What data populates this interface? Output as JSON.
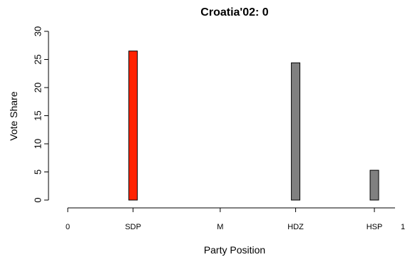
{
  "chart_data": {
    "type": "bar",
    "title": "Croatia'02: 0",
    "xlabel": "Party Position",
    "ylabel": "Vote Share",
    "ylim": [
      0,
      30
    ],
    "yticks": [
      0,
      5,
      10,
      15,
      20,
      25,
      30
    ],
    "xlim": [
      0,
      1
    ],
    "xticks": [
      {
        "pos": 0,
        "label": "0"
      },
      {
        "pos": 0.195,
        "label": "SDP"
      },
      {
        "pos": 0.455,
        "label": "M"
      },
      {
        "pos": 0.68,
        "label": "HDZ"
      },
      {
        "pos": 0.915,
        "label": "HSP"
      },
      {
        "pos": 1,
        "label": "1"
      }
    ],
    "bars": [
      {
        "party": "SDP",
        "position": 0.195,
        "value": 26.5,
        "color": "#ff2200"
      },
      {
        "party": "HDZ",
        "position": 0.68,
        "value": 24.4,
        "color": "#808080"
      },
      {
        "party": "HSP",
        "position": 0.915,
        "value": 5.3,
        "color": "#808080"
      }
    ]
  }
}
